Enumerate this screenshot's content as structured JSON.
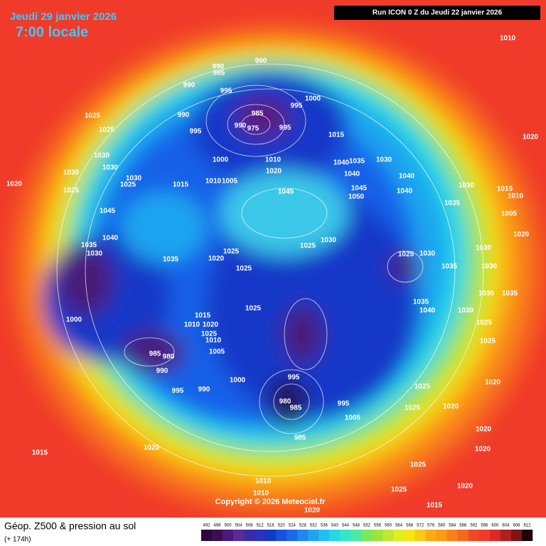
{
  "header": {
    "date": "Jeudi 29 janvier 2026",
    "time": "7:00 locale",
    "run": "Run ICON 0 Z du Jeudi 22 janvier 2026"
  },
  "copyright": "Copyright © 2026 Meteociel.fr",
  "footer": {
    "title": "Géop. Z500 & pression au sol",
    "lead": "(+ 174h)"
  },
  "colorbar": {
    "labels": [
      492,
      496,
      500,
      504,
      508,
      512,
      516,
      520,
      524,
      528,
      532,
      536,
      540,
      544,
      548,
      552,
      556,
      560,
      564,
      568,
      572,
      576,
      580,
      584,
      588,
      592,
      596,
      600,
      604,
      608,
      612
    ]
  },
  "pressure_labels": [
    990,
    990,
    985,
    990,
    995,
    1000,
    995,
    985,
    990,
    990,
    975,
    995,
    995,
    1025,
    1025,
    1015,
    1030,
    1030,
    1010,
    1000,
    1020,
    1040,
    1035,
    1030,
    1030,
    1025,
    1030,
    1025,
    1020,
    1015,
    1010,
    1005,
    1045,
    1040,
    1045,
    1050,
    1040,
    1040,
    1030,
    1015,
    1010,
    1045,
    1035,
    1005,
    1040,
    1035,
    1030,
    1025,
    1030,
    1020,
    1025,
    1025,
    1035,
    1025,
    1030,
    1030,
    1020,
    1035,
    1030,
    1015,
    1020,
    1025,
    1010,
    1025,
    1010,
    1000,
    1005,
    985,
    980,
    990,
    1000,
    995,
    990,
    995,
    980,
    985,
    995,
    985,
    1005,
    1025,
    1025,
    1020,
    1015,
    1020,
    1025,
    1020,
    1010,
    1010,
    1025,
    1020,
    1015,
    1020,
    1010,
    1020,
    1035,
    1040,
    1030,
    1025,
    1025,
    1020,
    1020,
    1035,
    1030
  ]
}
